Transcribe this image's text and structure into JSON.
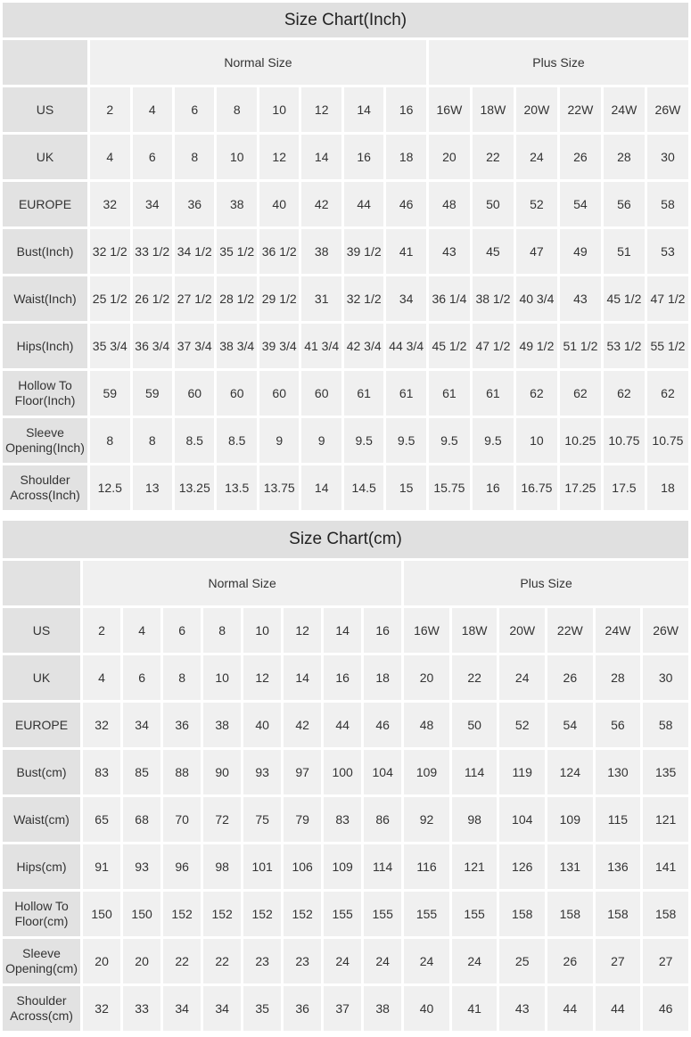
{
  "charts": [
    {
      "title": "Size Chart(Inch)",
      "groups": [
        "Normal Size",
        "Plus Size"
      ],
      "rows": [
        {
          "label": "US",
          "values": [
            "2",
            "4",
            "6",
            "8",
            "10",
            "12",
            "14",
            "16",
            "16W",
            "18W",
            "20W",
            "22W",
            "24W",
            "26W"
          ]
        },
        {
          "label": "UK",
          "values": [
            "4",
            "6",
            "8",
            "10",
            "12",
            "14",
            "16",
            "18",
            "20",
            "22",
            "24",
            "26",
            "28",
            "30"
          ]
        },
        {
          "label": "EUROPE",
          "values": [
            "32",
            "34",
            "36",
            "38",
            "40",
            "42",
            "44",
            "46",
            "48",
            "50",
            "52",
            "54",
            "56",
            "58"
          ]
        },
        {
          "label": "Bust(Inch)",
          "values": [
            "32 1/2",
            "33 1/2",
            "34 1/2",
            "35 1/2",
            "36 1/2",
            "38",
            "39 1/2",
            "41",
            "43",
            "45",
            "47",
            "49",
            "51",
            "53"
          ]
        },
        {
          "label": "Waist(Inch)",
          "values": [
            "25 1/2",
            "26 1/2",
            "27 1/2",
            "28 1/2",
            "29 1/2",
            "31",
            "32 1/2",
            "34",
            "36 1/4",
            "38 1/2",
            "40 3/4",
            "43",
            "45 1/2",
            "47 1/2"
          ]
        },
        {
          "label": "Hips(Inch)",
          "values": [
            "35 3/4",
            "36 3/4",
            "37 3/4",
            "38 3/4",
            "39 3/4",
            "41 3/4",
            "42 3/4",
            "44 3/4",
            "45 1/2",
            "47 1/2",
            "49 1/2",
            "51 1/2",
            "53 1/2",
            "55 1/2"
          ]
        },
        {
          "label": "Hollow To Floor(Inch)",
          "values": [
            "59",
            "59",
            "60",
            "60",
            "60",
            "60",
            "61",
            "61",
            "61",
            "61",
            "62",
            "62",
            "62",
            "62"
          ]
        },
        {
          "label": "Sleeve Opening(Inch)",
          "values": [
            "8",
            "8",
            "8.5",
            "8.5",
            "9",
            "9",
            "9.5",
            "9.5",
            "9.5",
            "9.5",
            "10",
            "10.25",
            "10.75",
            "10.75"
          ]
        },
        {
          "label": "Shoulder Across(Inch)",
          "values": [
            "12.5",
            "13",
            "13.25",
            "13.5",
            "13.75",
            "14",
            "14.5",
            "15",
            "15.75",
            "16",
            "16.75",
            "17.25",
            "17.5",
            "18"
          ]
        }
      ]
    },
    {
      "title": "Size Chart(cm)",
      "groups": [
        "Normal Size",
        "Plus Size"
      ],
      "rows": [
        {
          "label": "US",
          "values": [
            "2",
            "4",
            "6",
            "8",
            "10",
            "12",
            "14",
            "16",
            "16W",
            "18W",
            "20W",
            "22W",
            "24W",
            "26W"
          ]
        },
        {
          "label": "UK",
          "values": [
            "4",
            "6",
            "8",
            "10",
            "12",
            "14",
            "16",
            "18",
            "20",
            "22",
            "24",
            "26",
            "28",
            "30"
          ]
        },
        {
          "label": "EUROPE",
          "values": [
            "32",
            "34",
            "36",
            "38",
            "40",
            "42",
            "44",
            "46",
            "48",
            "50",
            "52",
            "54",
            "56",
            "58"
          ]
        },
        {
          "label": "Bust(cm)",
          "values": [
            "83",
            "85",
            "88",
            "90",
            "93",
            "97",
            "100",
            "104",
            "109",
            "114",
            "119",
            "124",
            "130",
            "135"
          ]
        },
        {
          "label": "Waist(cm)",
          "values": [
            "65",
            "68",
            "70",
            "72",
            "75",
            "79",
            "83",
            "86",
            "92",
            "98",
            "104",
            "109",
            "115",
            "121"
          ]
        },
        {
          "label": "Hips(cm)",
          "values": [
            "91",
            "93",
            "96",
            "98",
            "101",
            "106",
            "109",
            "114",
            "116",
            "121",
            "126",
            "131",
            "136",
            "141"
          ]
        },
        {
          "label": "Hollow To Floor(cm)",
          "values": [
            "150",
            "150",
            "152",
            "152",
            "152",
            "152",
            "155",
            "155",
            "155",
            "155",
            "158",
            "158",
            "158",
            "158"
          ]
        },
        {
          "label": "Sleeve Opening(cm)",
          "values": [
            "20",
            "20",
            "22",
            "22",
            "23",
            "23",
            "24",
            "24",
            "24",
            "24",
            "25",
            "26",
            "27",
            "27"
          ]
        },
        {
          "label": "Shoulder Across(cm)",
          "values": [
            "32",
            "33",
            "34",
            "34",
            "35",
            "36",
            "37",
            "38",
            "40",
            "41",
            "43",
            "44",
            "44",
            "46"
          ]
        }
      ]
    }
  ]
}
